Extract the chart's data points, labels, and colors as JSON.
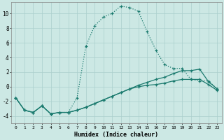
{
  "xlabel": "Humidex (Indice chaleur)",
  "bg_color": "#cce8e4",
  "grid_color": "#aacfcc",
  "line_color": "#1a7a6e",
  "xlim": [
    -0.5,
    23.5
  ],
  "ylim": [
    -5.0,
    11.5
  ],
  "xticks": [
    0,
    1,
    2,
    3,
    4,
    5,
    6,
    7,
    8,
    9,
    10,
    11,
    12,
    13,
    14,
    15,
    16,
    17,
    18,
    19,
    20,
    21,
    22,
    23
  ],
  "yticks": [
    -4,
    -2,
    0,
    2,
    4,
    6,
    8,
    10
  ],
  "series1_x": [
    0,
    1,
    2,
    3,
    4,
    5,
    6,
    7,
    8,
    9,
    10,
    11,
    12,
    13,
    14,
    15,
    16,
    17,
    18,
    19,
    20,
    21,
    22,
    23
  ],
  "series1_y": [
    -1.5,
    -3.2,
    -3.5,
    -2.6,
    -3.7,
    -3.5,
    -3.5,
    -1.5,
    5.5,
    8.3,
    9.5,
    10.0,
    11.0,
    10.8,
    10.3,
    7.5,
    5.0,
    3.0,
    2.5,
    2.5,
    1.0,
    0.8,
    0.8,
    -0.3
  ],
  "series2_x": [
    0,
    1,
    2,
    3,
    4,
    5,
    6,
    7,
    8,
    9,
    10,
    11,
    12,
    13,
    14,
    15,
    16,
    17,
    18,
    19,
    20,
    21,
    22,
    23
  ],
  "series2_y": [
    -1.5,
    -3.2,
    -3.5,
    -2.6,
    -3.7,
    -3.5,
    -3.5,
    -3.2,
    -2.8,
    -2.3,
    -1.8,
    -1.3,
    -0.8,
    -0.3,
    0.2,
    0.6,
    1.0,
    1.3,
    1.8,
    2.2,
    2.2,
    2.4,
    0.7,
    -0.3
  ],
  "series3_x": [
    0,
    1,
    2,
    3,
    4,
    5,
    6,
    7,
    8,
    9,
    10,
    11,
    12,
    13,
    14,
    15,
    16,
    17,
    18,
    19,
    20,
    21,
    22,
    23
  ],
  "series3_y": [
    -1.5,
    -3.2,
    -3.5,
    -2.6,
    -3.7,
    -3.5,
    -3.5,
    -3.2,
    -2.8,
    -2.3,
    -1.8,
    -1.3,
    -0.8,
    -0.3,
    0.0,
    0.2,
    0.3,
    0.5,
    0.8,
    1.0,
    1.0,
    1.0,
    0.3,
    -0.5
  ]
}
